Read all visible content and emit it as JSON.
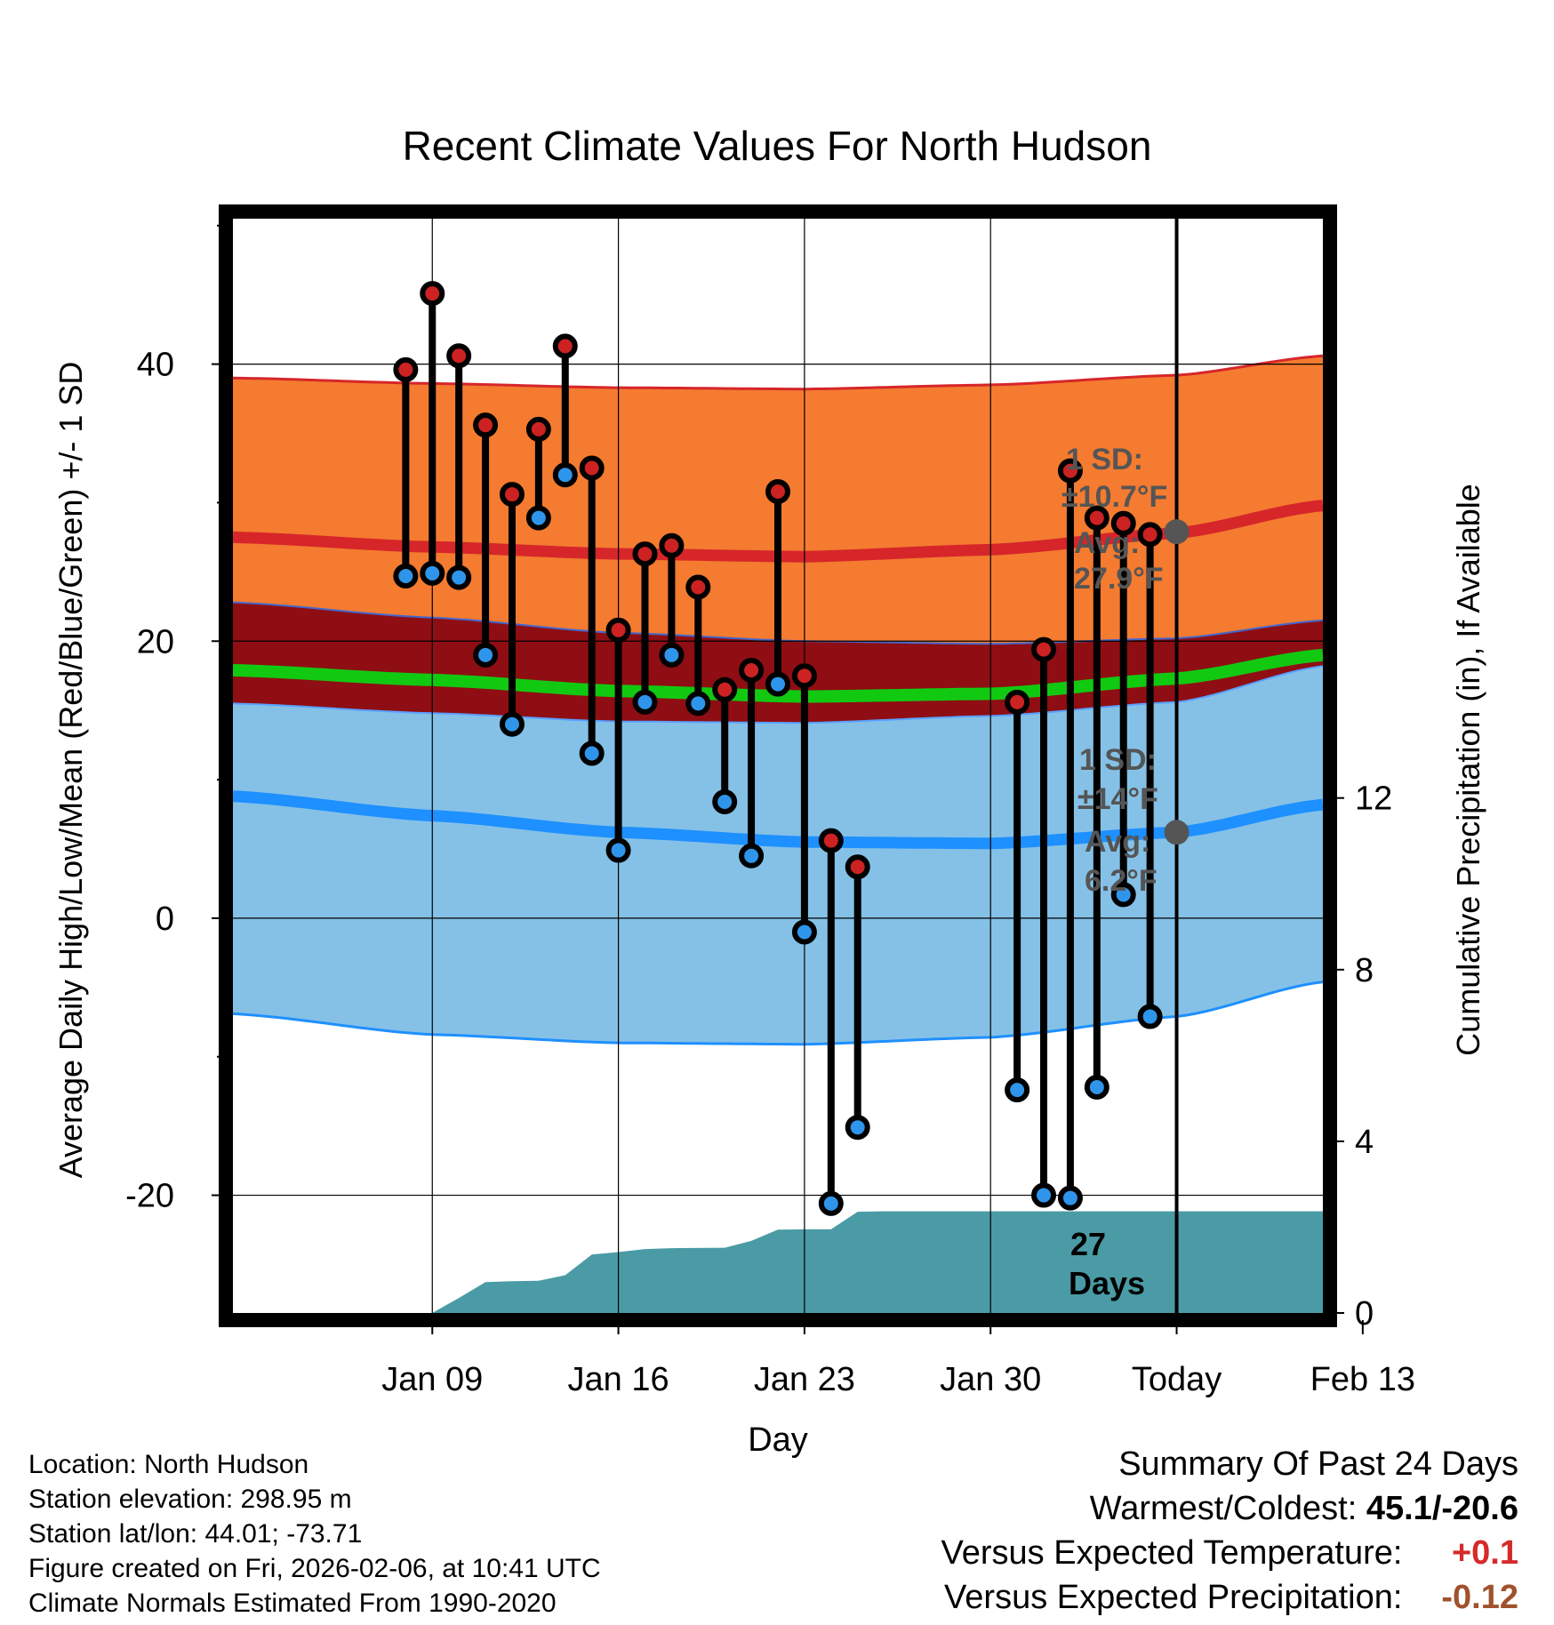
{
  "chart_data": {
    "type": "line",
    "title": "Recent Climate Values For North Hudson",
    "xlabel": "Day",
    "ylabel_left": "Average Daily High/Low/Mean (Red/Blue/Green) +/- 1 SD",
    "ylabel_right": "Cumulative Precipitation (in), If Available",
    "x_range_days": [
      -28.5,
      12.5
    ],
    "ylim_left": [
      -28.5,
      50.5
    ],
    "ylim_right": [
      0,
      25.5
    ],
    "x_ticks": [
      {
        "day": -21,
        "label": "Jan 09"
      },
      {
        "day": -14,
        "label": "Jan 16"
      },
      {
        "day": -7,
        "label": "Jan 23"
      },
      {
        "day": 0,
        "label": "Jan 30"
      },
      {
        "day": 7,
        "label": "Today"
      },
      {
        "day": 14,
        "label": "Feb 13"
      }
    ],
    "y_ticks_left": [
      -20,
      0,
      20,
      40
    ],
    "y_minor_ticks_left": [
      -10,
      10,
      30,
      50
    ],
    "y_ticks_right": [
      0,
      4,
      8,
      12
    ],
    "today_day": 7,
    "normal_days": [
      -28.5,
      -21,
      -14,
      -7,
      0,
      7,
      12.5
    ],
    "normal_high_avg": [
      27.5,
      26.8,
      26.3,
      26.1,
      26.6,
      27.8,
      29.8
    ],
    "normal_high_upper": [
      39.0,
      38.6,
      38.3,
      38.2,
      38.5,
      39.2,
      40.6
    ],
    "normal_high_lower": [
      22.8,
      21.7,
      20.6,
      20.0,
      19.8,
      20.2,
      21.5
    ],
    "normal_low_avg": [
      8.8,
      7.4,
      6.2,
      5.5,
      5.4,
      6.2,
      8.2
    ],
    "normal_low_upper": [
      15.5,
      14.8,
      14.2,
      14.1,
      14.6,
      15.6,
      18.2
    ],
    "normal_low_lower": [
      -6.9,
      -8.4,
      -9.0,
      -9.1,
      -8.6,
      -7.1,
      -4.6
    ],
    "normal_mean_avg": [
      17.9,
      17.2,
      16.4,
      16.0,
      16.2,
      17.3,
      19.0
    ],
    "high_annotation": {
      "sd_label": "1 SD:",
      "sd_value": "±10.7",
      "unit": "°F",
      "avg_label": "Avg:",
      "avg_value": "27.9",
      "avg": 27.9
    },
    "low_annotation": {
      "sd_label": "1 SD:",
      "sd_value": "±14",
      "unit": "°F",
      "avg_label": "Avg:",
      "avg_value": "6.2",
      "avg": 6.2
    },
    "observations": [
      {
        "day": -22,
        "high": 39.6,
        "low": 24.7
      },
      {
        "day": -21,
        "high": 45.1,
        "low": 24.9
      },
      {
        "day": -20,
        "high": 40.6,
        "low": 24.6
      },
      {
        "day": -19,
        "high": 35.6,
        "low": 19.0
      },
      {
        "day": -18,
        "high": 30.6,
        "low": 14.0
      },
      {
        "day": -17,
        "high": 35.3,
        "low": 28.9
      },
      {
        "day": -16,
        "high": 41.3,
        "low": 32.0
      },
      {
        "day": -15,
        "high": 32.5,
        "low": 11.9
      },
      {
        "day": -14,
        "high": 20.8,
        "low": 4.9
      },
      {
        "day": -13,
        "high": 26.3,
        "low": 15.6
      },
      {
        "day": -12,
        "high": 26.9,
        "low": 19.0
      },
      {
        "day": -11,
        "high": 23.9,
        "low": 15.5
      },
      {
        "day": -10,
        "high": 16.5,
        "low": 8.4
      },
      {
        "day": -9,
        "high": 17.9,
        "low": 4.5
      },
      {
        "day": -8,
        "high": 30.8,
        "low": 16.9
      },
      {
        "day": -7,
        "high": 17.5,
        "low": -1.0
      },
      {
        "day": -6,
        "high": 5.6,
        "low": -20.6
      },
      {
        "day": -5,
        "high": 3.7,
        "low": -15.1
      },
      {
        "day": 1,
        "high": 15.6,
        "low": -12.4
      },
      {
        "day": 2,
        "high": 19.4,
        "low": -20.0
      },
      {
        "day": 3,
        "high": 32.3,
        "low": -20.2
      },
      {
        "day": 4,
        "high": 28.9,
        "low": -12.2
      },
      {
        "day": 5,
        "high": 28.5,
        "low": 1.7
      },
      {
        "day": 6,
        "high": 27.7,
        "low": -7.1
      }
    ],
    "precipitation_days": [
      -21.0,
      -20.0,
      -19.0,
      -18.0,
      -17.0,
      -16.0,
      -15.0,
      -14.0,
      -13.0,
      -12.0,
      -10.0,
      -9.0,
      -8.0,
      -7.0,
      -6.0,
      -5.0,
      -4.0,
      6.0,
      7.0,
      10.0,
      12.5
    ],
    "precipitation_cumulative": [
      0.0,
      0.35,
      0.72,
      0.74,
      0.75,
      0.88,
      1.36,
      1.42,
      1.49,
      1.51,
      1.52,
      1.68,
      1.94,
      1.95,
      1.95,
      2.36,
      2.37,
      2.37,
      2.37,
      2.37,
      2.37
    ],
    "precip_annotation": {
      "value": "27",
      "unit": "Days"
    }
  },
  "info": {
    "location": "Location: North Hudson",
    "elevation": "Station elevation: 298.95 m",
    "latlon": "Station lat/lon: 44.01; -73.71",
    "created": "Figure created on Fri, 2026-02-06, at 10:41 UTC",
    "normals": "Climate Normals Estimated From 1990-2020"
  },
  "summary": {
    "title": "Summary Of Past 24 Days",
    "warm_cold_label": "Warmest/Coldest:",
    "warm_cold_value": "45.1/-20.6",
    "temp_label": "Versus Expected Temperature:",
    "temp_value": "+0.1",
    "precip_label": "Versus Expected Precipitation:",
    "precip_value": "-0.12"
  },
  "colors": {
    "high_band": "#f47b30",
    "high_line": "#d6262a",
    "mid_band": "#8e0e13",
    "mean_line": "#12c912",
    "low_band": "#85c1e6",
    "low_line": "#1e90ff",
    "precip": "#4a9ba5",
    "annotation": "#555555",
    "temp_value": "#d62a2a",
    "precip_value": "#a0522d"
  }
}
